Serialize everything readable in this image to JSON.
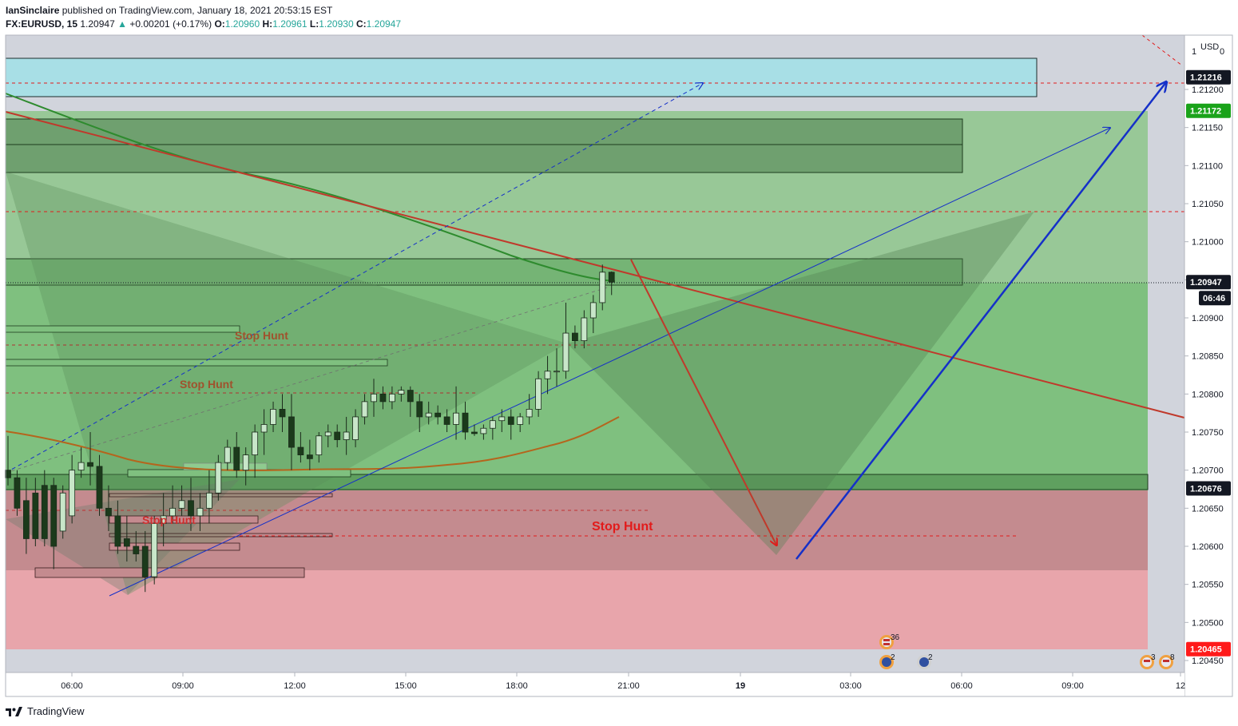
{
  "header": {
    "author": "IanSinclaire",
    "published_text": "published on TradingView.com, January 18, 2021 20:53:15 EST",
    "symbol": "FX:EURUSD, 15",
    "last": "1.20947",
    "change": "+0.00201 (+0.17%)",
    "o_label": "O:",
    "o_value": "1.20960",
    "h_label": "H:",
    "h_value": "1.20961",
    "l_label": "L:",
    "l_value": "1.20930",
    "c_label": "C:",
    "c_value": "1.20947"
  },
  "footer": {
    "brand": "TradingView"
  },
  "colors": {
    "up_candle": "#c8e6c9",
    "down_candle": "#1b3a1b",
    "bull_zone": "#6fbf73",
    "bear_zone": "#e57373",
    "supply_zone": "#a8e0e8",
    "trend_red": "#c0392b",
    "ma_green": "#2e8b2e",
    "ma_brown": "#b5651d",
    "arrow_blue": "#1530c8"
  },
  "chart_data": {
    "type": "candlestick",
    "symbol": "FX:EURUSD",
    "timeframe": "15",
    "currency": "USD",
    "y_axis": {
      "ticks": [
        "1.20450",
        "1.20500",
        "1.20550",
        "1.20600",
        "1.20650",
        "1.20700",
        "1.20750",
        "1.20800",
        "1.20850",
        "1.20900",
        "1.20950",
        "1.21000",
        "1.21050",
        "1.21100",
        "1.21150",
        "1.21200"
      ],
      "top_label": "1",
      "top_label_right": "0",
      "unit_label": "USD"
    },
    "x_axis": {
      "ticks": [
        "06:00",
        "09:00",
        "12:00",
        "15:00",
        "18:00",
        "21:00",
        "19",
        "03:00",
        "06:00",
        "09:00",
        "12"
      ]
    },
    "price_badges": [
      {
        "value": "1.21216",
        "color": "#131722",
        "text_color": "#ffffff"
      },
      {
        "value": "1.21172",
        "color": "#1aa31a",
        "text_color": "#ffffff"
      },
      {
        "value": "1.20947",
        "color": "#131722",
        "text_color": "#ffffff"
      },
      {
        "value": "06:46",
        "color": "#131722",
        "text_color": "#ffffff"
      },
      {
        "value": "1.20676",
        "color": "#131722",
        "text_color": "#ffffff"
      },
      {
        "value": "1.20465",
        "color": "#ff1a1a",
        "text_color": "#ffffff"
      }
    ],
    "annotations": [
      "Stop Hunt",
      "Stop Hunt",
      "Stop Hunt",
      "Stop Hunt"
    ],
    "events": [
      {
        "flag": "us",
        "count": "36"
      },
      {
        "flag": "eu",
        "count": "2"
      },
      {
        "flag": "eu",
        "count": "2"
      },
      {
        "flag": "us",
        "count": "3"
      },
      {
        "flag": "eu",
        "count": "8"
      }
    ],
    "candles": [
      [
        1.207,
        1.20745,
        1.2068,
        1.2069
      ],
      [
        1.2069,
        1.207,
        1.2064,
        1.2065
      ],
      [
        1.2066,
        1.2069,
        1.2059,
        1.2061
      ],
      [
        1.2067,
        1.2069,
        1.206,
        1.2061
      ],
      [
        1.2068,
        1.207,
        1.206,
        1.2061
      ],
      [
        1.2068,
        1.2069,
        1.2057,
        1.206
      ],
      [
        1.2062,
        1.2068,
        1.2061,
        1.2067
      ],
      [
        1.2064,
        1.2072,
        1.2063,
        1.207
      ],
      [
        1.207,
        1.2073,
        1.2069,
        1.2071
      ],
      [
        1.2071,
        1.2075,
        1.2068,
        1.20705
      ],
      [
        1.20705,
        1.2072,
        1.2064,
        1.2065
      ],
      [
        1.2065,
        1.2068,
        1.2062,
        1.2064
      ],
      [
        1.2064,
        1.2066,
        1.2059,
        1.206
      ],
      [
        1.2061,
        1.2064,
        1.2058,
        1.206
      ],
      [
        1.206,
        1.2062,
        1.2058,
        1.2059
      ],
      [
        1.206,
        1.2062,
        1.2054,
        1.2056
      ],
      [
        1.2056,
        1.2064,
        1.2055,
        1.2063
      ],
      [
        1.2063,
        1.2067,
        1.206,
        1.2064
      ],
      [
        1.2064,
        1.2068,
        1.2063,
        1.2065
      ],
      [
        1.2065,
        1.2068,
        1.2064,
        1.2066
      ],
      [
        1.2066,
        1.2069,
        1.2062,
        1.2064
      ],
      [
        1.2064,
        1.2067,
        1.2062,
        1.2065
      ],
      [
        1.2065,
        1.207,
        1.2063,
        1.2067
      ],
      [
        1.2067,
        1.2072,
        1.2066,
        1.2071
      ],
      [
        1.2071,
        1.2074,
        1.207,
        1.2073
      ],
      [
        1.2073,
        1.2075,
        1.2069,
        1.207
      ],
      [
        1.207,
        1.2073,
        1.2068,
        1.2072
      ],
      [
        1.2072,
        1.2076,
        1.2069,
        1.2075
      ],
      [
        1.2075,
        1.2078,
        1.2072,
        1.2076
      ],
      [
        1.2076,
        1.2079,
        1.2075,
        1.2078
      ],
      [
        1.2078,
        1.208,
        1.2075,
        1.2077
      ],
      [
        1.2077,
        1.208,
        1.207,
        1.2073
      ],
      [
        1.2073,
        1.2075,
        1.2071,
        1.2072
      ],
      [
        1.2072,
        1.2074,
        1.207,
        1.20715
      ],
      [
        1.2072,
        1.2075,
        1.2071,
        1.20745
      ],
      [
        1.20745,
        1.2076,
        1.2073,
        1.2075
      ],
      [
        1.2075,
        1.2076,
        1.2073,
        1.2074
      ],
      [
        1.2074,
        1.2077,
        1.2072,
        1.2075
      ],
      [
        1.2074,
        1.2078,
        1.2073,
        1.2077
      ],
      [
        1.2077,
        1.208,
        1.2076,
        1.2079
      ],
      [
        1.2079,
        1.2082,
        1.2077,
        1.208
      ],
      [
        1.208,
        1.2081,
        1.2078,
        1.2079
      ],
      [
        1.2079,
        1.2081,
        1.2078,
        1.208
      ],
      [
        1.208,
        1.2081,
        1.2079,
        1.20805
      ],
      [
        1.20805,
        1.2081,
        1.2077,
        1.2079
      ],
      [
        1.2079,
        1.208,
        1.2075,
        1.2077
      ],
      [
        1.2077,
        1.2079,
        1.2076,
        1.20775
      ],
      [
        1.20775,
        1.20785,
        1.2076,
        1.2077
      ],
      [
        1.2077,
        1.2078,
        1.2075,
        1.2076
      ],
      [
        1.2076,
        1.2081,
        1.2074,
        1.20775
      ],
      [
        1.20775,
        1.2079,
        1.2074,
        1.2075
      ],
      [
        1.2075,
        1.2076,
        1.20745,
        1.20748
      ],
      [
        1.20748,
        1.2076,
        1.2074,
        1.20755
      ],
      [
        1.20755,
        1.2077,
        1.2074,
        1.20765
      ],
      [
        1.20765,
        1.2078,
        1.2075,
        1.2077
      ],
      [
        1.2077,
        1.2078,
        1.2074,
        1.2076
      ],
      [
        1.2076,
        1.20775,
        1.2075,
        1.2077
      ],
      [
        1.2077,
        1.208,
        1.2076,
        1.2078
      ],
      [
        1.2078,
        1.2083,
        1.2077,
        1.2082
      ],
      [
        1.2082,
        1.2085,
        1.208,
        1.2083
      ],
      [
        1.2083,
        1.2086,
        1.2081,
        1.2083
      ],
      [
        1.2083,
        1.2092,
        1.2082,
        1.2088
      ],
      [
        1.2088,
        1.2089,
        1.2086,
        1.2087
      ],
      [
        1.2087,
        1.2091,
        1.2086,
        1.209
      ],
      [
        1.209,
        1.2093,
        1.2088,
        1.2092
      ],
      [
        1.2092,
        1.2097,
        1.2091,
        1.2096
      ],
      [
        1.2096,
        1.20961,
        1.2093,
        1.20947
      ]
    ]
  }
}
